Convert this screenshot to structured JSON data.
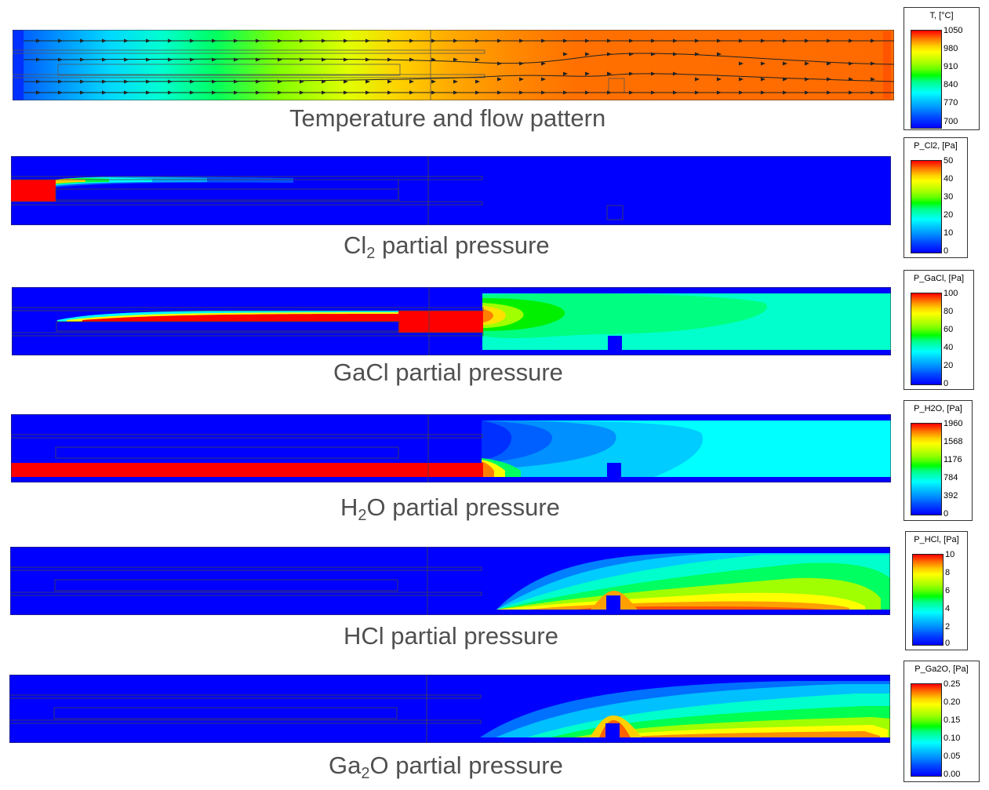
{
  "panels": [
    {
      "caption": {
        "pre": "Temperature and flow pattern",
        "sub": "",
        "post": ""
      },
      "legend": {
        "title": "T, [°C]",
        "ticks": [
          "1050",
          "980",
          "910",
          "840",
          "770",
          "700"
        ]
      },
      "colors": {
        "hot": "#ff6a00",
        "cold": "#0000ff",
        "mid": "#00ff80"
      }
    },
    {
      "caption": {
        "pre": "Cl",
        "sub": "2",
        "post": " partial pressure"
      },
      "legend": {
        "title": "P_Cl2, [Pa]",
        "ticks": [
          "50",
          "40",
          "30",
          "20",
          "10",
          "0"
        ]
      },
      "colors": {
        "background": "#0000ff",
        "max": "#ff0000"
      }
    },
    {
      "caption": {
        "pre": "GaCl partial pressure",
        "sub": "",
        "post": ""
      },
      "legend": {
        "title": "P_GaCl, [Pa]",
        "ticks": [
          "100",
          "80",
          "60",
          "40",
          "20",
          "0"
        ]
      },
      "colors": {
        "background": "#0000ff",
        "max": "#ff0000",
        "plume": "#00ff80"
      }
    },
    {
      "caption": {
        "pre": "H",
        "sub": "2",
        "post": "O partial pressure"
      },
      "legend": {
        "title": "P_H2O, [Pa]",
        "ticks": [
          "1960",
          "1568",
          "1176",
          "784",
          "392",
          "0"
        ]
      },
      "colors": {
        "background": "#0000ff",
        "max": "#ff0000",
        "plume": "#00ffff"
      }
    },
    {
      "caption": {
        "pre": "HCl partial pressure",
        "sub": "",
        "post": ""
      },
      "legend": {
        "title": "P_HCl, [Pa]",
        "ticks": [
          "10",
          "8",
          "6",
          "4",
          "2",
          "0"
        ]
      },
      "colors": {
        "background": "#0000ff",
        "max": "#ff0000"
      }
    },
    {
      "caption": {
        "pre": "Ga",
        "sub": "2",
        "post": "O partial pressure"
      },
      "legend": {
        "title": "P_Ga2O, [Pa]",
        "ticks": [
          "0.25",
          "0.20",
          "0.15",
          "0.10",
          "0.05",
          "0.00"
        ]
      },
      "colors": {
        "background": "#0000ff",
        "max": "#ff0000"
      }
    }
  ]
}
